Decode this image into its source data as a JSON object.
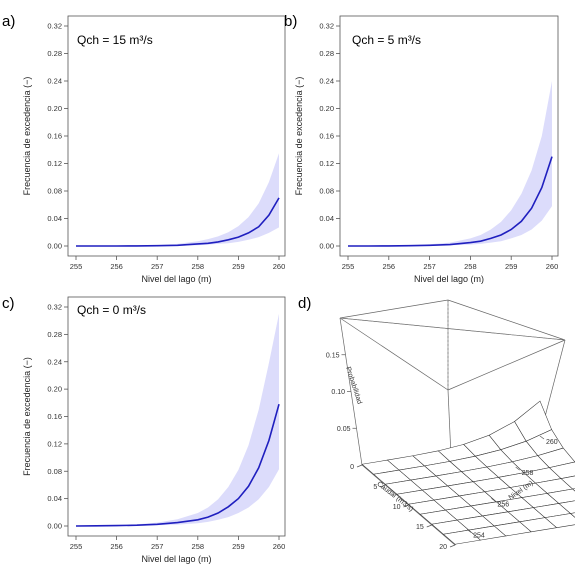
{
  "chart_data": [
    {
      "type": "line",
      "panel_label": "a)",
      "annotation": "Qch = 15 m³/s",
      "xlabel": "Nivel del lago (m)",
      "ylabel": "Frecuencia de excedencia (−)",
      "xlim": [
        255,
        260
      ],
      "ylim": [
        0,
        0.32
      ],
      "x_ticks": [
        "255",
        "256",
        "257",
        "258",
        "259",
        "260"
      ],
      "y_ticks": [
        "0.00",
        "0.04",
        "0.08",
        "0.12",
        "0.16",
        "0.20",
        "0.24",
        "0.28",
        "0.32"
      ],
      "x": [
        255,
        255.5,
        256,
        256.5,
        257,
        257.5,
        258,
        258.25,
        258.5,
        258.75,
        259,
        259.25,
        259.5,
        259.75,
        260
      ],
      "mean": [
        0,
        0,
        0,
        0.0002,
        0.0005,
        0.001,
        0.003,
        0.004,
        0.006,
        0.009,
        0.013,
        0.019,
        0.028,
        0.045,
        0.07
      ],
      "lower": [
        0,
        0,
        0,
        0.0001,
        0.0002,
        0.0004,
        0.001,
        0.002,
        0.003,
        0.004,
        0.006,
        0.009,
        0.013,
        0.019,
        0.027
      ],
      "upper": [
        0,
        0,
        0.0002,
        0.0006,
        0.0012,
        0.003,
        0.007,
        0.01,
        0.014,
        0.02,
        0.029,
        0.042,
        0.062,
        0.093,
        0.135
      ]
    },
    {
      "type": "line",
      "panel_label": "b)",
      "annotation": "Qch = 5 m³/s",
      "xlabel": "Nivel del lago (m)",
      "ylabel": "Frecuencia de excedencia (−)",
      "xlim": [
        255,
        260
      ],
      "ylim": [
        0,
        0.32
      ],
      "x_ticks": [
        "255",
        "256",
        "257",
        "258",
        "259",
        "260"
      ],
      "y_ticks": [
        "0.00",
        "0.04",
        "0.08",
        "0.12",
        "0.16",
        "0.20",
        "0.24",
        "0.28",
        "0.32"
      ],
      "x": [
        255,
        255.5,
        256,
        256.5,
        257,
        257.5,
        258,
        258.25,
        258.5,
        258.75,
        259,
        259.25,
        259.5,
        259.75,
        260
      ],
      "mean": [
        0,
        0,
        0.0002,
        0.0005,
        0.001,
        0.002,
        0.005,
        0.007,
        0.011,
        0.016,
        0.024,
        0.036,
        0.055,
        0.085,
        0.13
      ],
      "lower": [
        0,
        0,
        0.0001,
        0.0002,
        0.0004,
        0.001,
        0.002,
        0.003,
        0.005,
        0.007,
        0.011,
        0.016,
        0.024,
        0.037,
        0.058
      ],
      "upper": [
        0,
        0.0002,
        0.0006,
        0.0012,
        0.0025,
        0.005,
        0.011,
        0.016,
        0.024,
        0.035,
        0.052,
        0.076,
        0.11,
        0.16,
        0.24
      ]
    },
    {
      "type": "line",
      "panel_label": "c)",
      "annotation": "Qch = 0 m³/s",
      "xlabel": "Nivel del lago (m)",
      "ylabel": "Frecuencia de excedencia (−)",
      "xlim": [
        255,
        260
      ],
      "ylim": [
        0,
        0.32
      ],
      "x_ticks": [
        "255",
        "256",
        "257",
        "258",
        "259",
        "260"
      ],
      "y_ticks": [
        "0.00",
        "0.04",
        "0.08",
        "0.12",
        "0.16",
        "0.20",
        "0.24",
        "0.28",
        "0.32"
      ],
      "x": [
        255,
        255.5,
        256,
        256.5,
        257,
        257.5,
        258,
        258.25,
        258.5,
        258.75,
        259,
        259.25,
        259.5,
        259.75,
        260
      ],
      "mean": [
        0,
        0.0003,
        0.0006,
        0.0012,
        0.0025,
        0.005,
        0.009,
        0.013,
        0.019,
        0.028,
        0.04,
        0.058,
        0.085,
        0.125,
        0.178
      ],
      "lower": [
        0,
        0.0001,
        0.0002,
        0.0005,
        0.001,
        0.002,
        0.004,
        0.006,
        0.009,
        0.013,
        0.019,
        0.027,
        0.039,
        0.057,
        0.083
      ],
      "upper": [
        0,
        0.0006,
        0.0013,
        0.0025,
        0.005,
        0.01,
        0.019,
        0.027,
        0.039,
        0.057,
        0.082,
        0.118,
        0.17,
        0.238,
        0.31
      ]
    },
    {
      "type": "surface",
      "panel_label": "d)",
      "zlabel": "Probabilidad",
      "xlabel": "Caudal (m3/s)",
      "ylabel": "Nivel (m)",
      "z_ticks": [
        "0.05",
        "0.10",
        "0.15"
      ],
      "x_ticks": [
        "0",
        "5",
        "10",
        "15",
        "20"
      ],
      "y_ticks": [
        "254",
        "256",
        "258",
        "260"
      ],
      "caudal": [
        0,
        2.5,
        5,
        7.5,
        10,
        12.5,
        15,
        17.5,
        20
      ],
      "nivel": [
        253,
        254,
        255,
        256,
        257,
        258,
        259,
        260
      ],
      "zlim": [
        0,
        0.2
      ],
      "max_probability": 0.18
    }
  ]
}
